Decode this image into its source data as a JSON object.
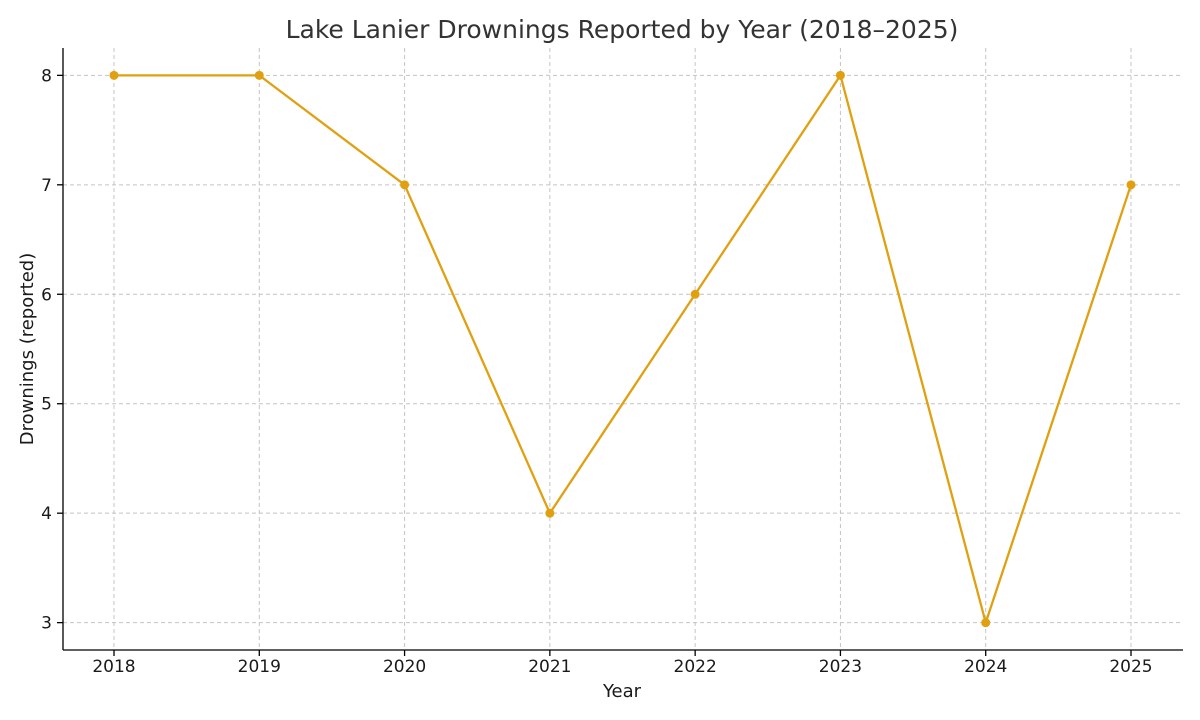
{
  "chart_data": {
    "type": "line",
    "title": "Lake Lanier Drownings Reported by Year (2018–2025)",
    "xlabel": "Year",
    "ylabel": "Drownings (reported)",
    "categories": [
      "2018",
      "2019",
      "2020",
      "2021",
      "2022",
      "2023",
      "2024",
      "2025"
    ],
    "x_ticks": [
      "2018",
      "2019",
      "2020",
      "2021",
      "2022",
      "2023",
      "2024",
      "2025"
    ],
    "y_ticks": [
      "3",
      "4",
      "5",
      "6",
      "7",
      "8"
    ],
    "series": [
      {
        "values": [
          8,
          8,
          7,
          4,
          6,
          8,
          3,
          7
        ],
        "color": "#E0A010"
      }
    ],
    "ylim": [
      2.75,
      8.25
    ],
    "grid": true,
    "marker": "circle"
  }
}
